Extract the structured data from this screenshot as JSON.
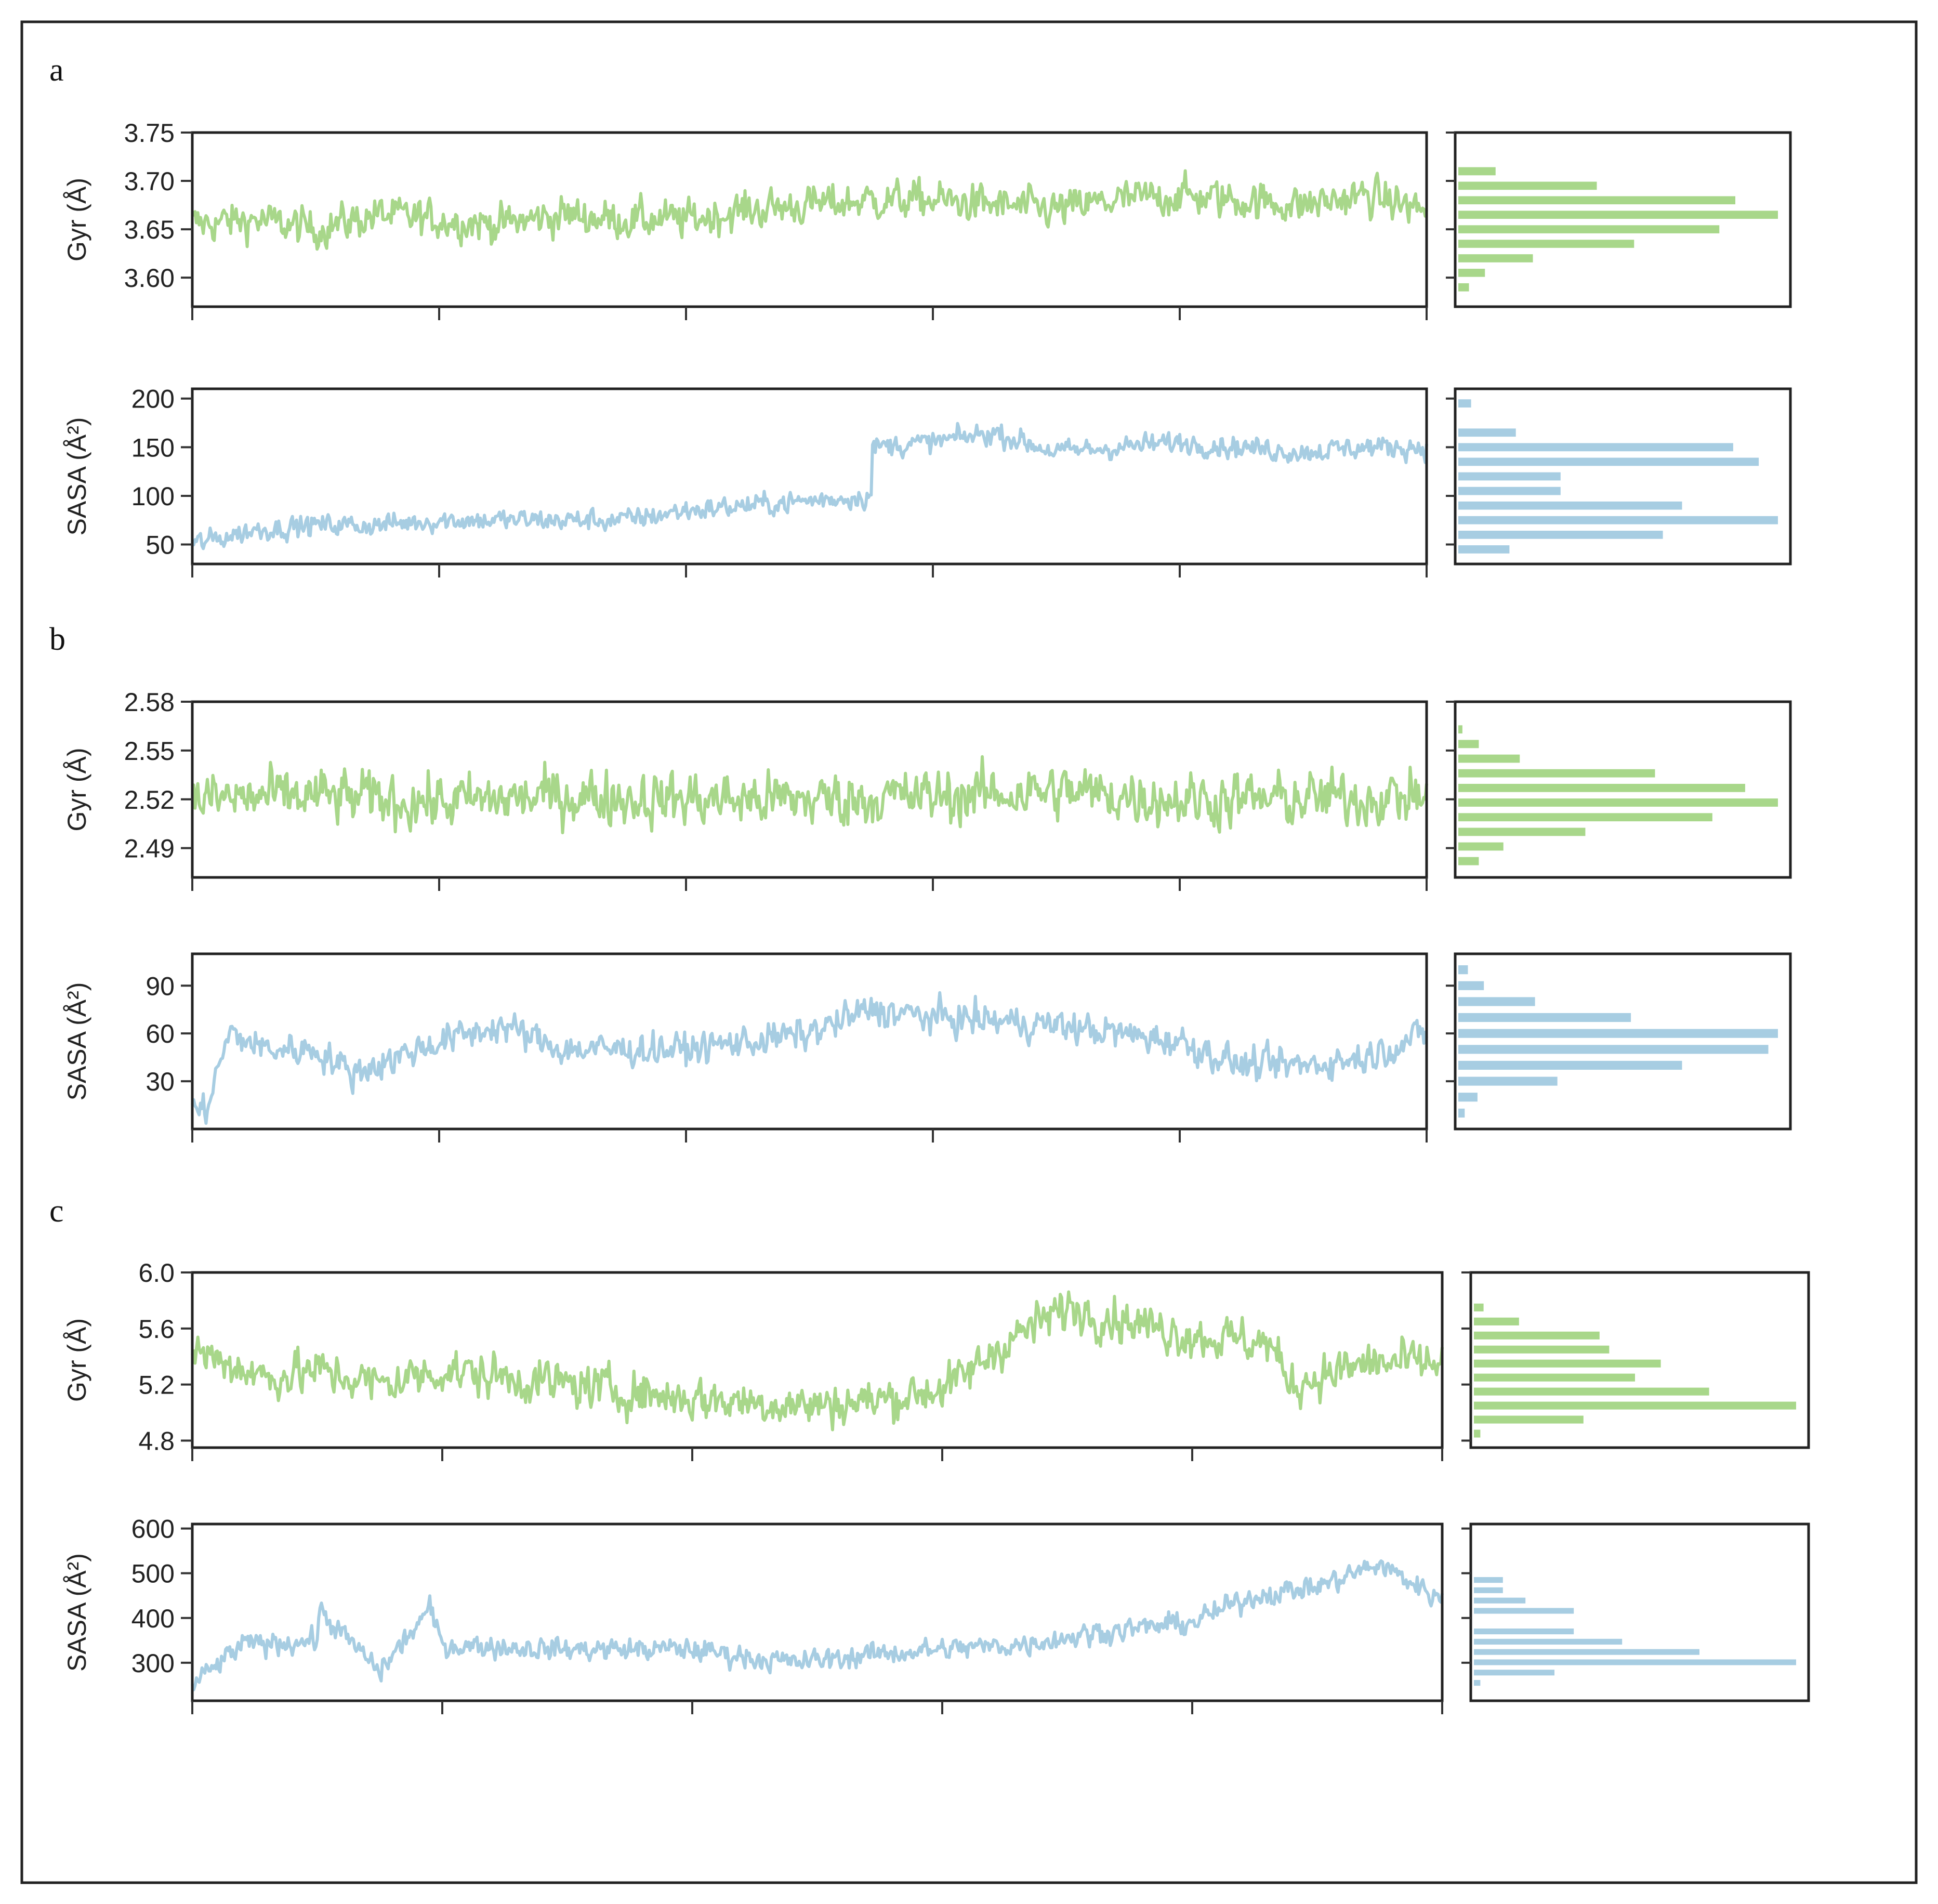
{
  "figure": {
    "panels": [
      {
        "label": "a"
      },
      {
        "label": "b"
      },
      {
        "label": "c"
      }
    ]
  },
  "colors": {
    "gyr": "#a8d78a",
    "sasa": "#a7cde2",
    "axis": "#333333",
    "frame": "#222222"
  },
  "chart_data": [
    {
      "id": "a-gyr",
      "panel": "a",
      "type": "line",
      "ylabel": "Gyr (Å)",
      "color": "gyr",
      "ylim": [
        3.57,
        3.75
      ],
      "yticks": [
        3.6,
        3.65,
        3.7,
        3.75
      ],
      "ytick_labels": [
        "3.60",
        "3.65",
        "3.70",
        "3.75"
      ],
      "xlim": [
        0,
        5
      ],
      "xticks": [
        0,
        1,
        2,
        3,
        4,
        5
      ],
      "xtick_labels": [
        "",
        "",
        "",
        "",
        "",
        ""
      ],
      "series": [
        {
          "x": [
            0,
            0.25,
            0.5,
            0.75,
            1,
            1.25,
            1.5,
            1.75,
            2,
            2.25,
            2.5,
            2.75,
            3,
            3.25,
            3.5,
            3.75,
            4,
            4.25,
            4.5,
            4.75,
            5
          ],
          "y": [
            3.655,
            3.66,
            3.65,
            3.665,
            3.66,
            3.655,
            3.665,
            3.66,
            3.66,
            3.67,
            3.675,
            3.68,
            3.68,
            3.675,
            3.67,
            3.68,
            3.685,
            3.68,
            3.675,
            3.685,
            3.67
          ],
          "noise": 0.035
        }
      ],
      "hist": {
        "bins": [
          3.59,
          3.605,
          3.62,
          3.635,
          3.65,
          3.665,
          3.68,
          3.695,
          3.71,
          3.725
        ],
        "counts": [
          2,
          5,
          14,
          33,
          49,
          60,
          52,
          26,
          7,
          0
        ]
      }
    },
    {
      "id": "a-sasa",
      "panel": "a",
      "type": "line",
      "ylabel": "SASA (Å²)",
      "color": "sasa",
      "ylim": [
        30,
        210
      ],
      "yticks": [
        50,
        100,
        150,
        200
      ],
      "ytick_labels": [
        "50",
        "100",
        "150",
        "200"
      ],
      "xlim": [
        0,
        5
      ],
      "xticks": [
        0,
        1,
        2,
        3,
        4,
        5
      ],
      "xtick_labels": [
        "",
        "",
        "",
        "",
        "",
        ""
      ],
      "series": [
        {
          "x": [
            0,
            0.25,
            0.5,
            0.75,
            1,
            1.25,
            1.5,
            1.75,
            2,
            2.25,
            2.5,
            2.75,
            2.72,
            2.75,
            3,
            3.25,
            3.5,
            3.75,
            4,
            4.25,
            4.5,
            4.75,
            5
          ],
          "y": [
            50,
            65,
            70,
            70,
            75,
            75,
            75,
            75,
            85,
            90,
            95,
            100,
            105,
            150,
            155,
            165,
            145,
            150,
            155,
            150,
            145,
            150,
            150
          ],
          "noise": 20
        }
      ],
      "hist": {
        "bins": [
          45,
          60,
          75,
          90,
          105,
          120,
          135,
          150,
          165,
          180,
          195
        ],
        "counts": [
          8,
          32,
          50,
          35,
          16,
          16,
          47,
          43,
          9,
          0,
          2
        ]
      }
    },
    {
      "id": "b-gyr",
      "panel": "b",
      "type": "line",
      "ylabel": "Gyr (Å)",
      "color": "gyr",
      "ylim": [
        2.472,
        2.58
      ],
      "yticks": [
        2.49,
        2.52,
        2.55,
        2.58
      ],
      "ytick_labels": [
        "2.49",
        "2.52",
        "2.55",
        "2.58"
      ],
      "xlim": [
        0,
        5
      ],
      "xticks": [
        0,
        1,
        2,
        3,
        4,
        5
      ],
      "xtick_labels": [
        "",
        "",
        "",
        "",
        "",
        ""
      ],
      "series": [
        {
          "x": [
            0,
            0.5,
            1,
            1.5,
            2,
            2.5,
            3,
            3.5,
            4,
            4.5,
            5
          ],
          "y": [
            2.52,
            2.522,
            2.518,
            2.522,
            2.52,
            2.52,
            2.522,
            2.525,
            2.52,
            2.52,
            2.522
          ],
          "noise": 0.03
        }
      ],
      "hist": {
        "bins": [
          2.482,
          2.491,
          2.5,
          2.509,
          2.518,
          2.527,
          2.536,
          2.545,
          2.554,
          2.563
        ],
        "counts": [
          5,
          11,
          31,
          62,
          78,
          70,
          48,
          15,
          5,
          1
        ]
      }
    },
    {
      "id": "b-sasa",
      "panel": "b",
      "type": "line",
      "ylabel": "SASA (Å²)",
      "color": "sasa",
      "ylim": [
        0,
        110
      ],
      "yticks": [
        30,
        60,
        90
      ],
      "ytick_labels": [
        "30",
        "60",
        "90"
      ],
      "xlim": [
        0,
        5
      ],
      "xticks": [
        0,
        1,
        2,
        3,
        4,
        5
      ],
      "xtick_labels": [
        "",
        "",
        "",
        "",
        "",
        ""
      ],
      "series": [
        {
          "x": [
            0,
            0.05,
            0.15,
            0.3,
            0.5,
            0.65,
            1,
            1.25,
            1.5,
            2,
            2.5,
            2.75,
            3,
            3.25,
            3.5,
            4,
            4.25,
            4.5,
            4.75,
            5
          ],
          "y": [
            15,
            10,
            60,
            50,
            50,
            35,
            55,
            65,
            50,
            50,
            60,
            75,
            70,
            68,
            65,
            55,
            40,
            40,
            45,
            60
          ],
          "noise": 18
        }
      ],
      "hist": {
        "bins": [
          10,
          20,
          30,
          40,
          50,
          60,
          70,
          80,
          90,
          100
        ],
        "counts": [
          2,
          6,
          31,
          70,
          97,
          100,
          54,
          24,
          8,
          3
        ]
      }
    },
    {
      "id": "c-gyr",
      "panel": "c",
      "type": "line",
      "ylabel": "Gyr (Å)",
      "color": "gyr",
      "ylim": [
        4.75,
        6.0
      ],
      "yticks": [
        4.8,
        5.2,
        5.6,
        6.0
      ],
      "ytick_labels": [
        "4.8",
        "5.2",
        "5.6",
        "6.0"
      ],
      "xlim": [
        0,
        5
      ],
      "xticks": [
        0,
        1,
        2,
        3,
        4,
        5
      ],
      "xtick_labels": [
        "",
        "",
        "",
        "",
        "",
        ""
      ],
      "series": [
        {
          "x": [
            0,
            0.3,
            0.5,
            0.75,
            1,
            1.5,
            2,
            2.5,
            2.8,
            3.05,
            3.25,
            3.5,
            4,
            4.3,
            4.4,
            4.7,
            5
          ],
          "y": [
            5.45,
            5.25,
            5.3,
            5.2,
            5.3,
            5.2,
            5.1,
            5.05,
            5.1,
            5.2,
            5.5,
            5.75,
            5.55,
            5.5,
            5.2,
            5.35,
            5.35
          ],
          "noise": 0.28
        }
      ],
      "hist": {
        "bins": [
          4.85,
          4.95,
          5.05,
          5.15,
          5.25,
          5.35,
          5.45,
          5.55,
          5.65,
          5.75,
          5.85
        ],
        "counts": [
          2,
          34,
          100,
          73,
          50,
          58,
          42,
          39,
          14,
          3,
          0
        ]
      }
    },
    {
      "id": "c-sasa",
      "panel": "c",
      "type": "line",
      "ylabel": "SASA (Å²)",
      "color": "sasa",
      "ylim": [
        215,
        610
      ],
      "yticks": [
        300,
        400,
        500,
        600
      ],
      "ytick_labels": [
        "300",
        "400",
        "500",
        "600"
      ],
      "xlim": [
        0,
        5
      ],
      "xticks": [
        0,
        1,
        2,
        3,
        4,
        5
      ],
      "xtick_labels": [
        "",
        "",
        "",
        "",
        "",
        ""
      ],
      "series": [
        {
          "x": [
            0,
            0.2,
            0.5,
            0.5,
            0.75,
            0.95,
            1,
            1.5,
            2,
            2.4,
            2.75,
            3,
            3.3,
            3.65,
            4,
            4.25,
            4.5,
            4.75,
            5
          ],
          "y": [
            250,
            340,
            350,
            420,
            280,
            420,
            340,
            330,
            330,
            300,
            320,
            330,
            340,
            370,
            390,
            450,
            470,
            520,
            440
          ],
          "noise": 45
        }
      ],
      "hist": {
        "bins": [
          255,
          278,
          301,
          324,
          347,
          370,
          393,
          416,
          439,
          462,
          485,
          508,
          531
        ],
        "counts": [
          2,
          25,
          100,
          70,
          46,
          31,
          0,
          31,
          16,
          9,
          9,
          0,
          0
        ]
      }
    }
  ]
}
